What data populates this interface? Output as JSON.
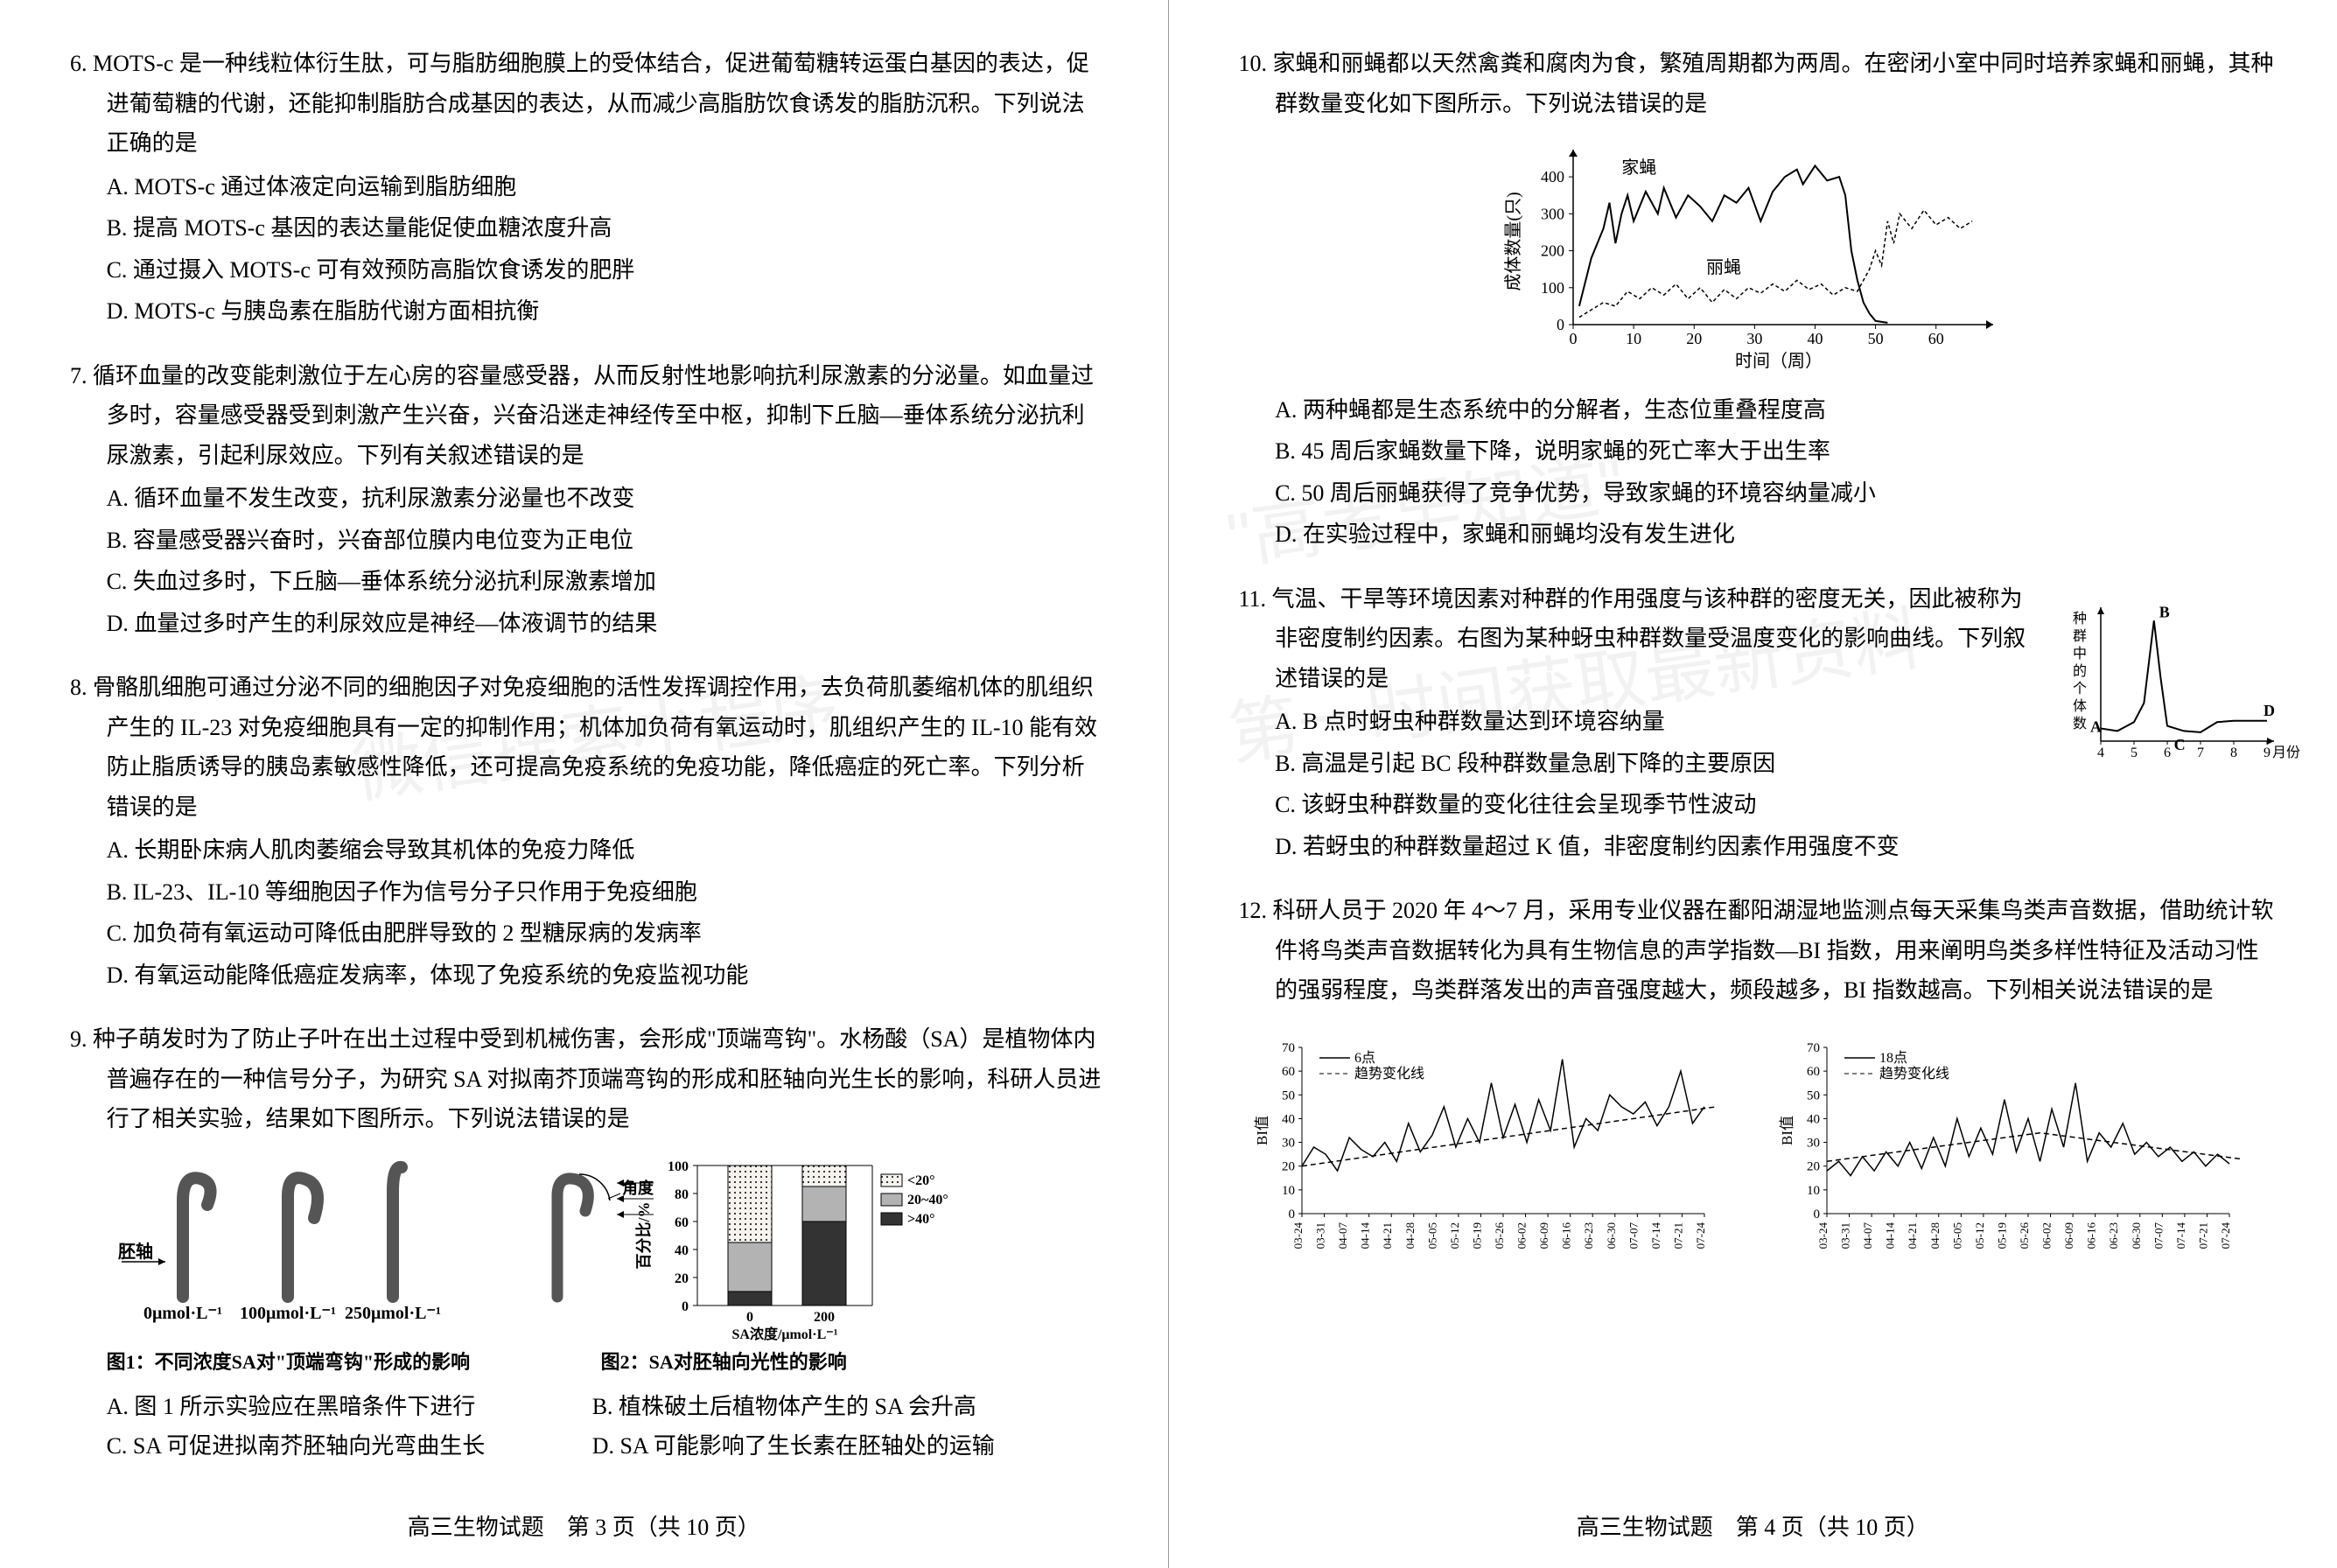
{
  "watermarks": {
    "wm1": "微信搜索小程序",
    "wm2": "\"高考早知道\"",
    "wm3": "第一时间获取最新资料"
  },
  "left": {
    "q6": {
      "num": "6.",
      "stem": "MOTS-c 是一种线粒体衍生肽，可与脂肪细胞膜上的受体结合，促进葡萄糖转运蛋白基因的表达，促进葡萄糖的代谢，还能抑制脂肪合成基因的表达，从而减少高脂肪饮食诱发的脂肪沉积。下列说法正确的是",
      "A": "A. MOTS-c 通过体液定向运输到脂肪细胞",
      "B": "B. 提高 MOTS-c 基因的表达量能促使血糖浓度升高",
      "C": "C. 通过摄入 MOTS-c 可有效预防高脂饮食诱发的肥胖",
      "D": "D. MOTS-c 与胰岛素在脂肪代谢方面相抗衡"
    },
    "q7": {
      "num": "7.",
      "stem": "循环血量的改变能刺激位于左心房的容量感受器，从而反射性地影响抗利尿激素的分泌量。如血量过多时，容量感受器受到刺激产生兴奋，兴奋沿迷走神经传至中枢，抑制下丘脑—垂体系统分泌抗利尿激素，引起利尿效应。下列有关叙述错误的是",
      "A": "A. 循环血量不发生改变，抗利尿激素分泌量也不改变",
      "B": "B. 容量感受器兴奋时，兴奋部位膜内电位变为正电位",
      "C": "C. 失血过多时，下丘脑—垂体系统分泌抗利尿激素增加",
      "D": "D. 血量过多时产生的利尿效应是神经—体液调节的结果"
    },
    "q8": {
      "num": "8.",
      "stem": "骨骼肌细胞可通过分泌不同的细胞因子对免疫细胞的活性发挥调控作用，去负荷肌萎缩机体的肌组织产生的 IL-23 对免疫细胞具有一定的抑制作用；机体加负荷有氧运动时，肌组织产生的 IL-10 能有效防止脂质诱导的胰岛素敏感性降低，还可提高免疫系统的免疫功能，降低癌症的死亡率。下列分析错误的是",
      "A": "A. 长期卧床病人肌肉萎缩会导致其机体的免疫力降低",
      "B": "B. IL-23、IL-10 等细胞因子作为信号分子只作用于免疫细胞",
      "C": "C. 加负荷有氧运动可降低由肥胖导致的 2 型糖尿病的发病率",
      "D": "D. 有氧运动能降低癌症发病率，体现了免疫系统的免疫监视功能"
    },
    "q9": {
      "num": "9.",
      "stem": "种子萌发时为了防止子叶在出土过程中受到机械伤害，会形成\"顶端弯钩\"。水杨酸（SA）是植物体内普遍存在的一种信号分子，为研究 SA 对拟南芥顶端弯钩的形成和胚轴向光生长的影响，科研人员进行了相关实验，结果如下图所示。下列说法错误的是",
      "A": "A. 图 1 所示实验应在黑暗条件下进行",
      "B": "B. 植株破土后植物体产生的 SA 会升高",
      "C": "C. SA 可促进拟南芥胚轴向光弯曲生长",
      "D": "D. SA 可能影响了生长素在胚轴处的运输",
      "fig1": {
        "label_axis": "胚轴",
        "conc": [
          "0μmol·L⁻¹",
          "100μmol·L⁻¹",
          "250μmol·L⁻¹"
        ],
        "caption": "图1：不同浓度SA对\"顶端弯钩\"形成的影响"
      },
      "fig2": {
        "angle_label": "角度",
        "ylabel": "百分比/%",
        "xlabel": "SA浓度/μmol·L⁻¹",
        "legend": [
          "<20°",
          "20~40°",
          ">40°"
        ],
        "xticks": [
          "0",
          "200"
        ],
        "yticks": [
          "0",
          "20",
          "40",
          "60",
          "80",
          "100"
        ],
        "bars": {
          "b0": {
            "lt20": 55,
            "mid": 35,
            "gt40": 10
          },
          "b200": {
            "lt20": 15,
            "mid": 25,
            "gt40": 60
          }
        },
        "caption": "图2：SA对胚轴向光性的影响",
        "colors": {
          "lt20": "#f6f3ef",
          "mid": "#b3b3b3",
          "gt40": "#333333",
          "border": "#000"
        }
      }
    },
    "footer": "高三生物试题　第 3 页（共 10 页）"
  },
  "right": {
    "q10": {
      "num": "10.",
      "stem": "家蝇和丽蝇都以天然禽粪和腐肉为食，繁殖周期都为两周。在密闭小室中同时培养家蝇和丽蝇，其种群数量变化如下图所示。下列说法错误的是",
      "A": "A. 两种蝇都是生态系统中的分解者，生态位重叠程度高",
      "B": "B. 45 周后家蝇数量下降，说明家蝇的死亡率大于出生率",
      "C": "C. 50 周后丽蝇获得了竞争优势，导致家蝇的环境容纳量减小",
      "D": "D. 在实验过程中，家蝇和丽蝇均没有发生进化",
      "chart": {
        "ylabel": "成体数量(只)",
        "xlabel": "时间（周）",
        "series": {
          "a": "家蝇",
          "b": "丽蝇"
        },
        "xlim": [
          0,
          68
        ],
        "ylim": [
          0,
          450
        ],
        "xticks": [
          0,
          10,
          20,
          30,
          40,
          50,
          60
        ],
        "yticks": [
          0,
          100,
          200,
          300,
          400
        ],
        "colors": {
          "jia": "#000",
          "li": "#000",
          "axis": "#000"
        },
        "jia_data": [
          [
            1,
            50
          ],
          [
            3,
            180
          ],
          [
            5,
            260
          ],
          [
            6,
            330
          ],
          [
            7,
            220
          ],
          [
            8,
            300
          ],
          [
            9,
            350
          ],
          [
            10,
            280
          ],
          [
            12,
            360
          ],
          [
            14,
            300
          ],
          [
            15,
            370
          ],
          [
            17,
            290
          ],
          [
            19,
            350
          ],
          [
            21,
            320
          ],
          [
            23,
            280
          ],
          [
            25,
            350
          ],
          [
            27,
            330
          ],
          [
            29,
            370
          ],
          [
            31,
            280
          ],
          [
            33,
            360
          ],
          [
            35,
            400
          ],
          [
            37,
            420
          ],
          [
            38,
            380
          ],
          [
            40,
            430
          ],
          [
            42,
            390
          ],
          [
            44,
            400
          ],
          [
            45,
            350
          ],
          [
            46,
            200
          ],
          [
            47,
            120
          ],
          [
            48,
            60
          ],
          [
            49,
            30
          ],
          [
            50,
            10
          ],
          [
            52,
            5
          ]
        ],
        "li_data": [
          [
            1,
            20
          ],
          [
            3,
            40
          ],
          [
            5,
            60
          ],
          [
            7,
            50
          ],
          [
            9,
            90
          ],
          [
            11,
            70
          ],
          [
            13,
            100
          ],
          [
            15,
            80
          ],
          [
            17,
            110
          ],
          [
            19,
            70
          ],
          [
            21,
            100
          ],
          [
            23,
            60
          ],
          [
            25,
            95
          ],
          [
            27,
            70
          ],
          [
            29,
            100
          ],
          [
            31,
            85
          ],
          [
            33,
            110
          ],
          [
            35,
            90
          ],
          [
            37,
            120
          ],
          [
            39,
            95
          ],
          [
            41,
            110
          ],
          [
            43,
            80
          ],
          [
            45,
            100
          ],
          [
            47,
            90
          ],
          [
            49,
            150
          ],
          [
            50,
            200
          ],
          [
            51,
            160
          ],
          [
            52,
            280
          ],
          [
            53,
            220
          ],
          [
            54,
            300
          ],
          [
            56,
            260
          ],
          [
            58,
            310
          ],
          [
            60,
            270
          ],
          [
            62,
            290
          ],
          [
            64,
            260
          ],
          [
            66,
            280
          ]
        ]
      }
    },
    "q11": {
      "num": "11.",
      "stem": "气温、干旱等环境因素对种群的作用强度与该种群的密度无关，因此被称为非密度制约因素。右图为某种蚜虫种群数量受温度变化的影响曲线。下列叙述错误的是",
      "A": "A. B 点时蚜虫种群数量达到环境容纳量",
      "B": "B. 高温是引起 BC 段种群数量急剧下降的主要原因",
      "C": "C. 该蚜虫种群数量的变化往往会呈现季节性波动",
      "D": "D. 若蚜虫的种群数量超过 K 值，非密度制约因素作用强度不变",
      "chart": {
        "ylabel": "种群中的个体数",
        "xlabel": "月份",
        "xticks": [
          "4",
          "5",
          "6",
          "7",
          "8",
          "9"
        ],
        "points": {
          "A": "A",
          "B": "B",
          "C": "C",
          "D": "D"
        },
        "curve": [
          [
            4,
            10
          ],
          [
            4.5,
            8
          ],
          [
            5,
            15
          ],
          [
            5.3,
            30
          ],
          [
            5.6,
            95
          ],
          [
            5.8,
            50
          ],
          [
            6,
            12
          ],
          [
            6.5,
            8
          ],
          [
            7,
            7
          ],
          [
            7.5,
            15
          ],
          [
            8,
            16
          ],
          [
            8.5,
            16
          ],
          [
            9,
            16
          ]
        ]
      }
    },
    "q12": {
      "num": "12.",
      "stem": "科研人员于 2020 年 4～7 月，采用专业仪器在鄱阳湖湿地监测点每天采集鸟类声音数据，借助统计软件将鸟类声音数据转化为具有生物信息的声学指数—BI 指数，用来阐明鸟类多样性特征及活动习性的强弱程度，鸟类群落发出的声音强度越大，频段越多，BI 指数越高。下列相关说法错误的是",
      "chart_left": {
        "legend1": "6点",
        "legend2": "趋势变化线",
        "ylabel": "BI值",
        "yticks": [
          0,
          10,
          20,
          30,
          40,
          50,
          60,
          70
        ],
        "xticks": [
          "03-24",
          "03-31",
          "04-07",
          "04-14",
          "04-21",
          "04-28",
          "05-05",
          "05-12",
          "05-19",
          "05-26",
          "06-02",
          "06-09",
          "06-16",
          "06-23",
          "06-30",
          "07-07",
          "07-14",
          "07-21",
          "07-24"
        ],
        "data": [
          20,
          28,
          25,
          18,
          32,
          27,
          24,
          30,
          22,
          38,
          26,
          33,
          45,
          28,
          40,
          30,
          55,
          32,
          46,
          30,
          48,
          35,
          65,
          28,
          40,
          35,
          50,
          45,
          42,
          47,
          37,
          45,
          60,
          38,
          45
        ],
        "trend": [
          [
            0,
            20
          ],
          [
            35,
            45
          ]
        ]
      },
      "chart_right": {
        "legend1": "18点",
        "legend2": "趋势变化线",
        "ylabel": "BI值",
        "yticks": [
          0,
          10,
          20,
          30,
          40,
          50,
          60,
          70
        ],
        "xticks": [
          "03-24",
          "03-31",
          "04-07",
          "04-14",
          "04-21",
          "04-28",
          "05-05",
          "05-12",
          "05-19",
          "05-26",
          "06-02",
          "06-09",
          "06-16",
          "06-23",
          "06-30",
          "07-07",
          "07-14",
          "07-21",
          "07-24"
        ],
        "data": [
          18,
          22,
          16,
          24,
          18,
          26,
          20,
          30,
          19,
          32,
          20,
          40,
          24,
          36,
          25,
          48,
          26,
          40,
          22,
          44,
          28,
          55,
          22,
          34,
          28,
          38,
          25,
          30,
          24,
          28,
          22,
          26,
          20,
          25,
          21
        ],
        "trend": [
          [
            0,
            22
          ],
          [
            18,
            34
          ],
          [
            35,
            23
          ]
        ]
      }
    },
    "footer": "高三生物试题　第 4 页（共 10 页）"
  }
}
